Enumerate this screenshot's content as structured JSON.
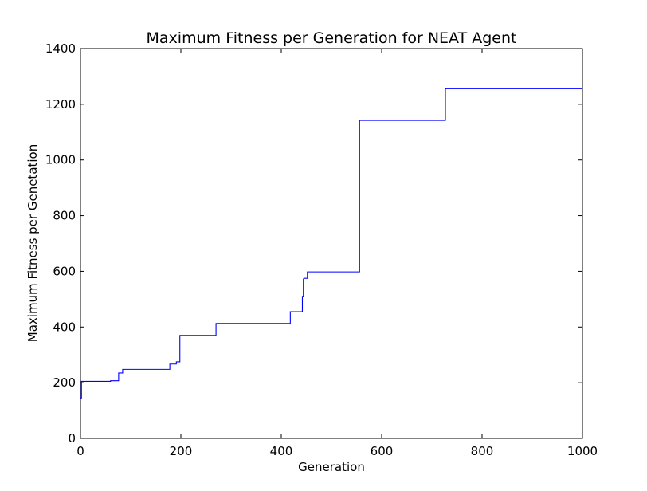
{
  "chart_data": {
    "type": "line",
    "title": "Maximum Fitness per Generation for NEAT Agent",
    "xlabel": "Generation",
    "ylabel": "Maximum Fitness per Genetation",
    "xlim": [
      0,
      1000
    ],
    "ylim": [
      0,
      1400
    ],
    "xticks": [
      0,
      200,
      400,
      600,
      800,
      1000
    ],
    "yticks": [
      0,
      200,
      400,
      600,
      800,
      1000,
      1200,
      1400
    ],
    "grid": false,
    "line_color": "#0000ff",
    "step": true,
    "x": [
      0,
      2,
      60,
      76,
      84,
      178,
      191,
      198,
      270,
      418,
      442,
      444,
      445,
      452,
      556,
      727,
      1000
    ],
    "y": [
      145,
      205,
      207,
      235,
      248,
      267,
      275,
      370,
      413,
      455,
      510,
      572,
      575,
      598,
      1142,
      1256,
      1256
    ]
  }
}
